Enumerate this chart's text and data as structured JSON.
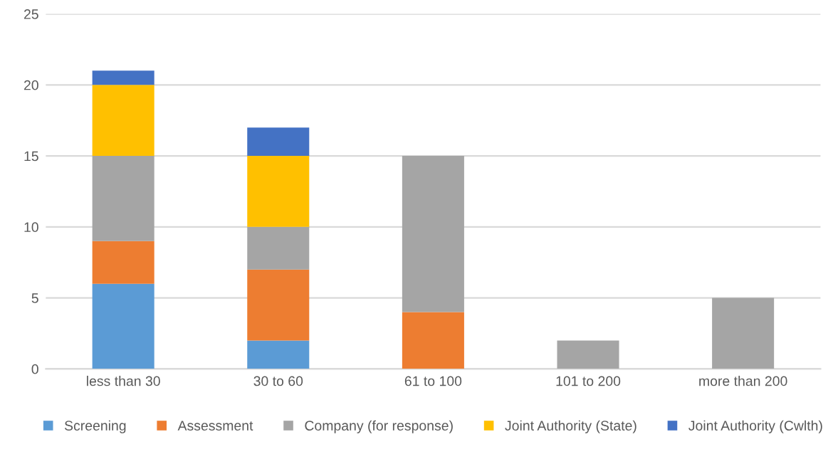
{
  "chart_data": {
    "type": "bar",
    "stacked": true,
    "categories": [
      "less than 30",
      "30 to 60",
      "61 to 100",
      "101 to 200",
      "more than 200"
    ],
    "series": [
      {
        "name": "Screening",
        "color": "#5b9bd5",
        "values": [
          6,
          2,
          0,
          0,
          0
        ]
      },
      {
        "name": "Assessment",
        "color": "#ed7d31",
        "values": [
          3,
          5,
          4,
          0,
          0
        ]
      },
      {
        "name": "Company (for response)",
        "color": "#a5a5a5",
        "values": [
          6,
          3,
          11,
          2,
          5
        ]
      },
      {
        "name": "Joint Authority (State)",
        "color": "#ffc000",
        "values": [
          5,
          5,
          0,
          0,
          0
        ]
      },
      {
        "name": "Joint Authority (Cwlth)",
        "color": "#4472c4",
        "values": [
          1,
          2,
          0,
          0,
          0
        ]
      }
    ],
    "ylim": [
      0,
      25
    ],
    "yticks": [
      0,
      5,
      10,
      15,
      20,
      25
    ],
    "grid": "y",
    "legend": "bottom"
  }
}
